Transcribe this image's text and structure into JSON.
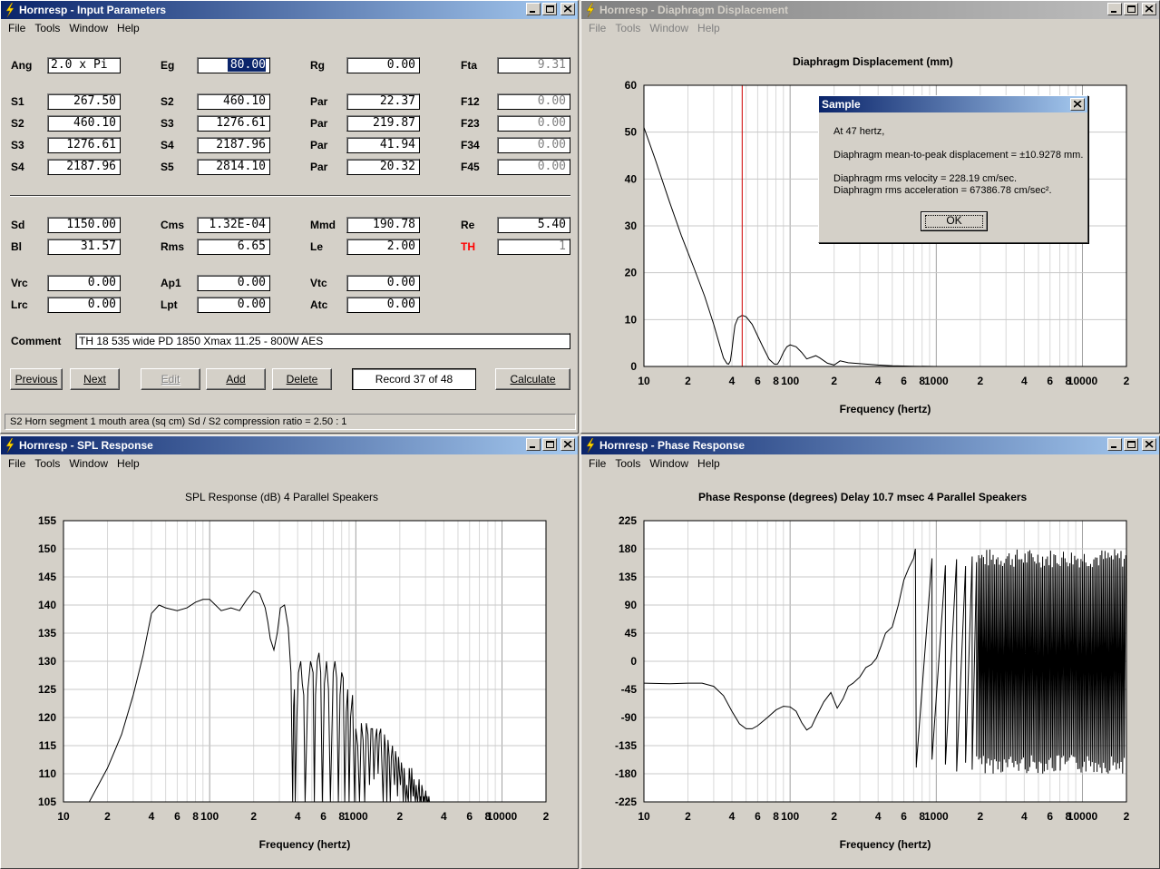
{
  "app": {
    "menus": [
      "File",
      "Tools",
      "Window",
      "Help"
    ]
  },
  "windows": {
    "input": {
      "title": "Hornresp - Input Parameters"
    },
    "diaphragm": {
      "title": "Hornresp - Diaphragm Displacement"
    },
    "spl": {
      "title": "Hornresp - SPL Response"
    },
    "phase": {
      "title": "Hornresp - Phase Response"
    }
  },
  "input": {
    "row0": [
      {
        "label": "Ang",
        "value": "2.0 x Pi",
        "left": true
      },
      {
        "label": "Eg",
        "value": "80.00",
        "selected": true
      },
      {
        "label": "Rg",
        "value": "0.00"
      },
      {
        "label": "Fta",
        "value": "9.31",
        "gray": true
      }
    ],
    "grid1": [
      [
        {
          "label": "S1",
          "value": "267.50"
        },
        {
          "label": "S2",
          "value": "460.10"
        },
        {
          "label": "Par",
          "value": "22.37"
        },
        {
          "label": "F12",
          "value": "0.00",
          "gray": true
        }
      ],
      [
        {
          "label": "S2",
          "value": "460.10"
        },
        {
          "label": "S3",
          "value": "1276.61"
        },
        {
          "label": "Par",
          "value": "219.87"
        },
        {
          "label": "F23",
          "value": "0.00",
          "gray": true
        }
      ],
      [
        {
          "label": "S3",
          "value": "1276.61"
        },
        {
          "label": "S4",
          "value": "2187.96"
        },
        {
          "label": "Par",
          "value": "41.94"
        },
        {
          "label": "F34",
          "value": "0.00",
          "gray": true
        }
      ],
      [
        {
          "label": "S4",
          "value": "2187.96"
        },
        {
          "label": "S5",
          "value": "2814.10"
        },
        {
          "label": "Par",
          "value": "20.32"
        },
        {
          "label": "F45",
          "value": "0.00",
          "gray": true
        }
      ]
    ],
    "grid2": [
      [
        {
          "label": "Sd",
          "value": "1150.00"
        },
        {
          "label": "Cms",
          "value": "1.32E-04"
        },
        {
          "label": "Mmd",
          "value": "190.78"
        },
        {
          "label": "Re",
          "value": "5.40"
        }
      ],
      [
        {
          "label": "Bl",
          "value": "31.57"
        },
        {
          "label": "Rms",
          "value": "6.65"
        },
        {
          "label": "Le",
          "value": "2.00"
        },
        {
          "label": "TH",
          "value": "1",
          "gray": true,
          "red": true
        }
      ]
    ],
    "grid3": [
      [
        {
          "label": "Vrc",
          "value": "0.00"
        },
        {
          "label": "Ap1",
          "value": "0.00"
        },
        {
          "label": "Vtc",
          "value": "0.00"
        }
      ],
      [
        {
          "label": "Lrc",
          "value": "0.00"
        },
        {
          "label": "Lpt",
          "value": "0.00"
        },
        {
          "label": "Atc",
          "value": "0.00"
        }
      ]
    ],
    "comment_label": "Comment",
    "comment_value": "TH 18  535 wide PD 1850 Xmax 11.25 - 800W AES",
    "buttons": {
      "previous": "Previous",
      "next": "Next",
      "edit": "Edit",
      "add": "Add",
      "delete": "Delete",
      "record": "Record 37 of 48",
      "calculate": "Calculate"
    },
    "status": "S2   Horn segment 1 mouth area  (sq cm)   Sd / S2 compression ratio = 2.50 : 1"
  },
  "dialog": {
    "title": "Sample",
    "line1": "At 47 hertz,",
    "line2": "Diaphragm mean-to-peak displacement = ±10.9278 mm.",
    "line3": "Diaphragm rms velocity = 228.19 cm/sec.",
    "line4": "Diaphragm rms acceleration = 67386.78 cm/sec².",
    "ok": "OK"
  },
  "chart_data": [
    {
      "id": "diaphragm",
      "type": "line",
      "title": "Diaphragm Displacement (mm)",
      "xlabel": "Frequency (hertz)",
      "xscale": "log",
      "xlim": [
        10,
        20000
      ],
      "ylim": [
        0,
        60
      ],
      "yticks": [
        0,
        10,
        20,
        30,
        40,
        50,
        60
      ],
      "xtick_labels": [
        [
          10,
          "10"
        ],
        [
          20,
          "2"
        ],
        [
          40,
          "4"
        ],
        [
          60,
          "6"
        ],
        [
          80,
          "8"
        ],
        [
          100,
          "100"
        ],
        [
          200,
          "2"
        ],
        [
          400,
          "4"
        ],
        [
          600,
          "6"
        ],
        [
          800,
          "8"
        ],
        [
          1000,
          "1000"
        ],
        [
          2000,
          "2"
        ],
        [
          4000,
          "4"
        ],
        [
          6000,
          "6"
        ],
        [
          8000,
          "8"
        ],
        [
          10000,
          "10000"
        ],
        [
          20000,
          "2"
        ]
      ],
      "cursor_x": 47,
      "cursor_color": "#cc0000",
      "x": [
        10,
        12,
        15,
        18,
        22,
        26,
        30,
        33,
        35,
        37,
        38,
        39,
        40,
        41,
        42,
        44,
        47,
        50,
        55,
        60,
        66,
        72,
        78,
        82,
        85,
        90,
        95,
        100,
        110,
        120,
        130,
        150,
        160,
        180,
        200,
        220,
        250,
        300,
        400,
        500,
        700,
        1000
      ],
      "y": [
        51,
        44,
        35,
        28,
        21,
        15,
        9,
        4.5,
        1.8,
        0.6,
        0.5,
        1.2,
        3.5,
        6.5,
        8.8,
        10.4,
        10.9,
        10.6,
        9,
        6.5,
        3.8,
        1.5,
        0.5,
        0.5,
        1.3,
        3,
        4.2,
        4.6,
        4.2,
        3,
        1.6,
        2.3,
        1.8,
        0.7,
        0.3,
        1.2,
        0.8,
        0.6,
        0.3,
        0.15,
        0.05,
        0
      ]
    },
    {
      "id": "spl",
      "type": "line",
      "title": "SPL Response (dB)    4 Parallel Speakers",
      "xlabel": "Frequency (hertz)",
      "xscale": "log",
      "xlim": [
        10,
        20000
      ],
      "ylim": [
        105,
        155
      ],
      "yticks": [
        105,
        110,
        115,
        120,
        125,
        130,
        135,
        140,
        145,
        150,
        155
      ],
      "xtick_labels": [
        [
          10,
          "10"
        ],
        [
          20,
          "2"
        ],
        [
          40,
          "4"
        ],
        [
          60,
          "6"
        ],
        [
          80,
          "8"
        ],
        [
          100,
          "100"
        ],
        [
          200,
          "2"
        ],
        [
          400,
          "4"
        ],
        [
          600,
          "6"
        ],
        [
          800,
          "8"
        ],
        [
          1000,
          "1000"
        ],
        [
          2000,
          "2"
        ],
        [
          4000,
          "4"
        ],
        [
          6000,
          "6"
        ],
        [
          8000,
          "8"
        ],
        [
          10000,
          "10000"
        ],
        [
          20000,
          "2"
        ]
      ],
      "x": [
        15,
        20,
        25,
        30,
        35,
        40,
        45,
        50,
        60,
        70,
        80,
        90,
        100,
        120,
        140,
        160,
        180,
        200,
        220,
        240,
        250,
        260,
        275,
        290,
        305,
        325,
        345,
        360,
        370,
        375,
        380,
        385,
        395,
        405,
        420,
        430,
        440,
        450,
        470,
        490,
        510,
        520,
        530,
        545,
        560,
        575,
        590,
        610,
        630,
        650,
        670,
        700,
        720,
        740,
        760,
        780,
        800,
        820,
        840,
        860,
        880,
        900,
        920,
        950,
        980,
        1000,
        1030,
        1060,
        1090,
        1120,
        1150,
        1180,
        1210,
        1240,
        1270,
        1300,
        1330,
        1360,
        1390,
        1420,
        1450,
        1480,
        1510,
        1540,
        1570,
        1600,
        1630,
        1660,
        1690,
        1720,
        1750,
        1780,
        1810,
        1840,
        1870,
        1900,
        1930,
        1960,
        1990,
        2020,
        2050,
        2080,
        2110,
        2140,
        2170,
        2200,
        2230,
        2260,
        2290,
        2320,
        2350,
        2380,
        2410,
        2440,
        2470,
        2500,
        2530,
        2560,
        2590,
        2620,
        2650,
        2680,
        2710,
        2740,
        2770,
        2800,
        2830,
        2860,
        2890,
        2920,
        2950,
        2980,
        3010,
        3040,
        3070,
        3100,
        3130,
        3160,
        3190,
        3220
      ],
      "y": [
        105,
        111,
        117,
        124,
        131,
        138.5,
        140,
        139.5,
        139,
        139.5,
        140.5,
        141,
        141,
        139,
        139.5,
        139,
        141,
        142.5,
        142,
        139.5,
        137,
        134,
        132,
        135,
        139.5,
        140,
        136,
        128,
        105,
        122,
        125,
        105,
        120,
        128,
        130,
        126,
        124,
        105,
        125,
        130,
        128,
        105,
        124,
        130,
        131.5,
        128,
        105,
        126,
        130,
        125,
        105,
        128,
        130,
        127,
        105,
        124,
        128,
        127,
        105,
        121,
        125,
        105,
        120,
        124,
        105,
        118,
        115,
        105,
        119,
        116,
        105,
        119,
        117,
        108,
        118,
        118,
        109,
        116,
        118,
        110,
        117,
        118,
        111,
        105,
        117,
        114,
        105,
        116,
        113,
        105,
        113,
        115,
        111,
        108,
        114,
        112,
        106,
        113,
        110,
        108,
        112,
        110,
        105,
        111,
        108,
        105,
        108,
        106,
        105,
        111,
        109,
        105,
        111,
        108,
        106,
        109,
        106,
        105,
        108,
        106,
        105,
        107,
        109,
        105,
        106,
        105,
        108,
        107,
        105,
        106,
        105,
        106,
        107,
        105,
        106,
        105,
        105,
        106,
        105,
        105
      ],
      "noise_after": 280
    },
    {
      "id": "phase",
      "type": "line",
      "title": "Phase Response (degrees)    Delay 10.7 msec    4 Parallel Speakers",
      "xlabel": "Frequency (hertz)",
      "xscale": "log",
      "xlim": [
        10,
        20000
      ],
      "ylim": [
        -225,
        225
      ],
      "yticks": [
        -225,
        -180,
        -135,
        -90,
        -45,
        0,
        45,
        90,
        135,
        180,
        225
      ],
      "xtick_labels": [
        [
          10,
          "10"
        ],
        [
          20,
          "2"
        ],
        [
          40,
          "4"
        ],
        [
          60,
          "6"
        ],
        [
          80,
          "8"
        ],
        [
          100,
          "100"
        ],
        [
          200,
          "2"
        ],
        [
          400,
          "4"
        ],
        [
          600,
          "6"
        ],
        [
          800,
          "8"
        ],
        [
          1000,
          "1000"
        ],
        [
          2000,
          "2"
        ],
        [
          4000,
          "4"
        ],
        [
          6000,
          "6"
        ],
        [
          8000,
          "8"
        ],
        [
          10000,
          "10000"
        ],
        [
          20000,
          "2"
        ]
      ],
      "x": [
        10,
        15,
        20,
        25,
        30,
        35,
        40,
        45,
        50,
        55,
        60,
        70,
        80,
        90,
        100,
        110,
        120,
        130,
        140,
        150,
        170,
        190,
        210,
        230,
        250,
        270,
        300,
        330,
        360,
        390,
        420,
        450,
        500,
        550,
        600,
        650,
        700,
        720,
        730
      ],
      "y": [
        -35,
        -36,
        -35,
        -35,
        -40,
        -55,
        -80,
        -100,
        -108,
        -108,
        -103,
        -90,
        -78,
        -72,
        -73,
        -80,
        -98,
        -110,
        -105,
        -90,
        -65,
        -50,
        -75,
        -60,
        -40,
        -35,
        -25,
        -10,
        -5,
        5,
        25,
        45,
        55,
        90,
        130,
        150,
        165,
        180,
        -170
      ],
      "wrap_start": 730,
      "wrap_end": 20000
    }
  ]
}
